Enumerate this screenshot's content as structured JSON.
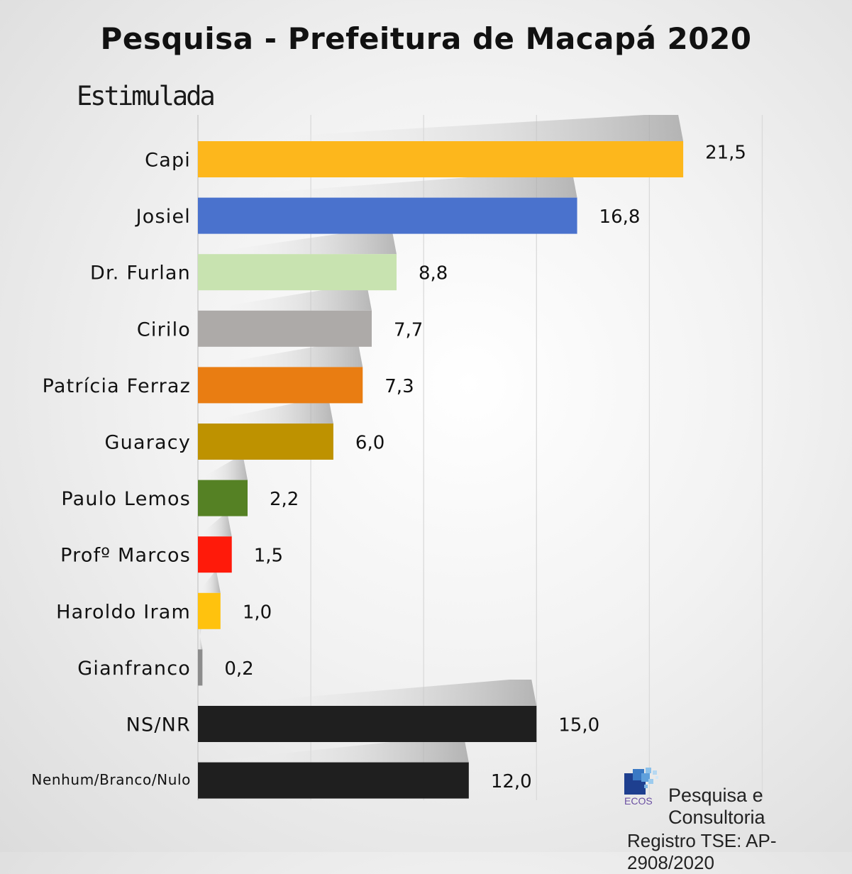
{
  "chart_data": {
    "type": "bar",
    "orientation": "horizontal",
    "title": "Pesquisa - Prefeitura de Macapá 2020",
    "subtitle": "Estimulada",
    "categories": [
      "Capi",
      "Josiel",
      "Dr. Furlan",
      "Cirilo",
      "Patrícia Ferraz",
      "Guaracy",
      "Paulo Lemos",
      "Profº Marcos",
      "Haroldo Iram",
      "Gianfranco",
      "NS/NR",
      "Nenhum/Branco/Nulo"
    ],
    "values": [
      21.5,
      16.8,
      8.8,
      7.7,
      7.3,
      6.0,
      2.2,
      1.5,
      1.0,
      0.2,
      15.0,
      12.0
    ],
    "value_labels": [
      "21,5",
      "16,8",
      "8,8",
      "7,7",
      "7,3",
      "6,0",
      "2,2",
      "1,5",
      "1,0",
      "0,2",
      "15,0",
      "12,0"
    ],
    "colors": [
      "#FDB71C",
      "#4A72CD",
      "#C8E3B0",
      "#ADAAA8",
      "#E97D12",
      "#BE9200",
      "#558124",
      "#FF1A0A",
      "#FFC20E",
      "#8C8C8C",
      "#1F1F1F",
      "#1F1F1F"
    ],
    "xlim": [
      0,
      27.5
    ],
    "grid": true,
    "xlabel": "",
    "ylabel": ""
  },
  "footer": {
    "logo_text": "ECOS",
    "company": "Pesquisa e Consultoria",
    "registro": "Registro TSE: AP-2908/2020"
  }
}
